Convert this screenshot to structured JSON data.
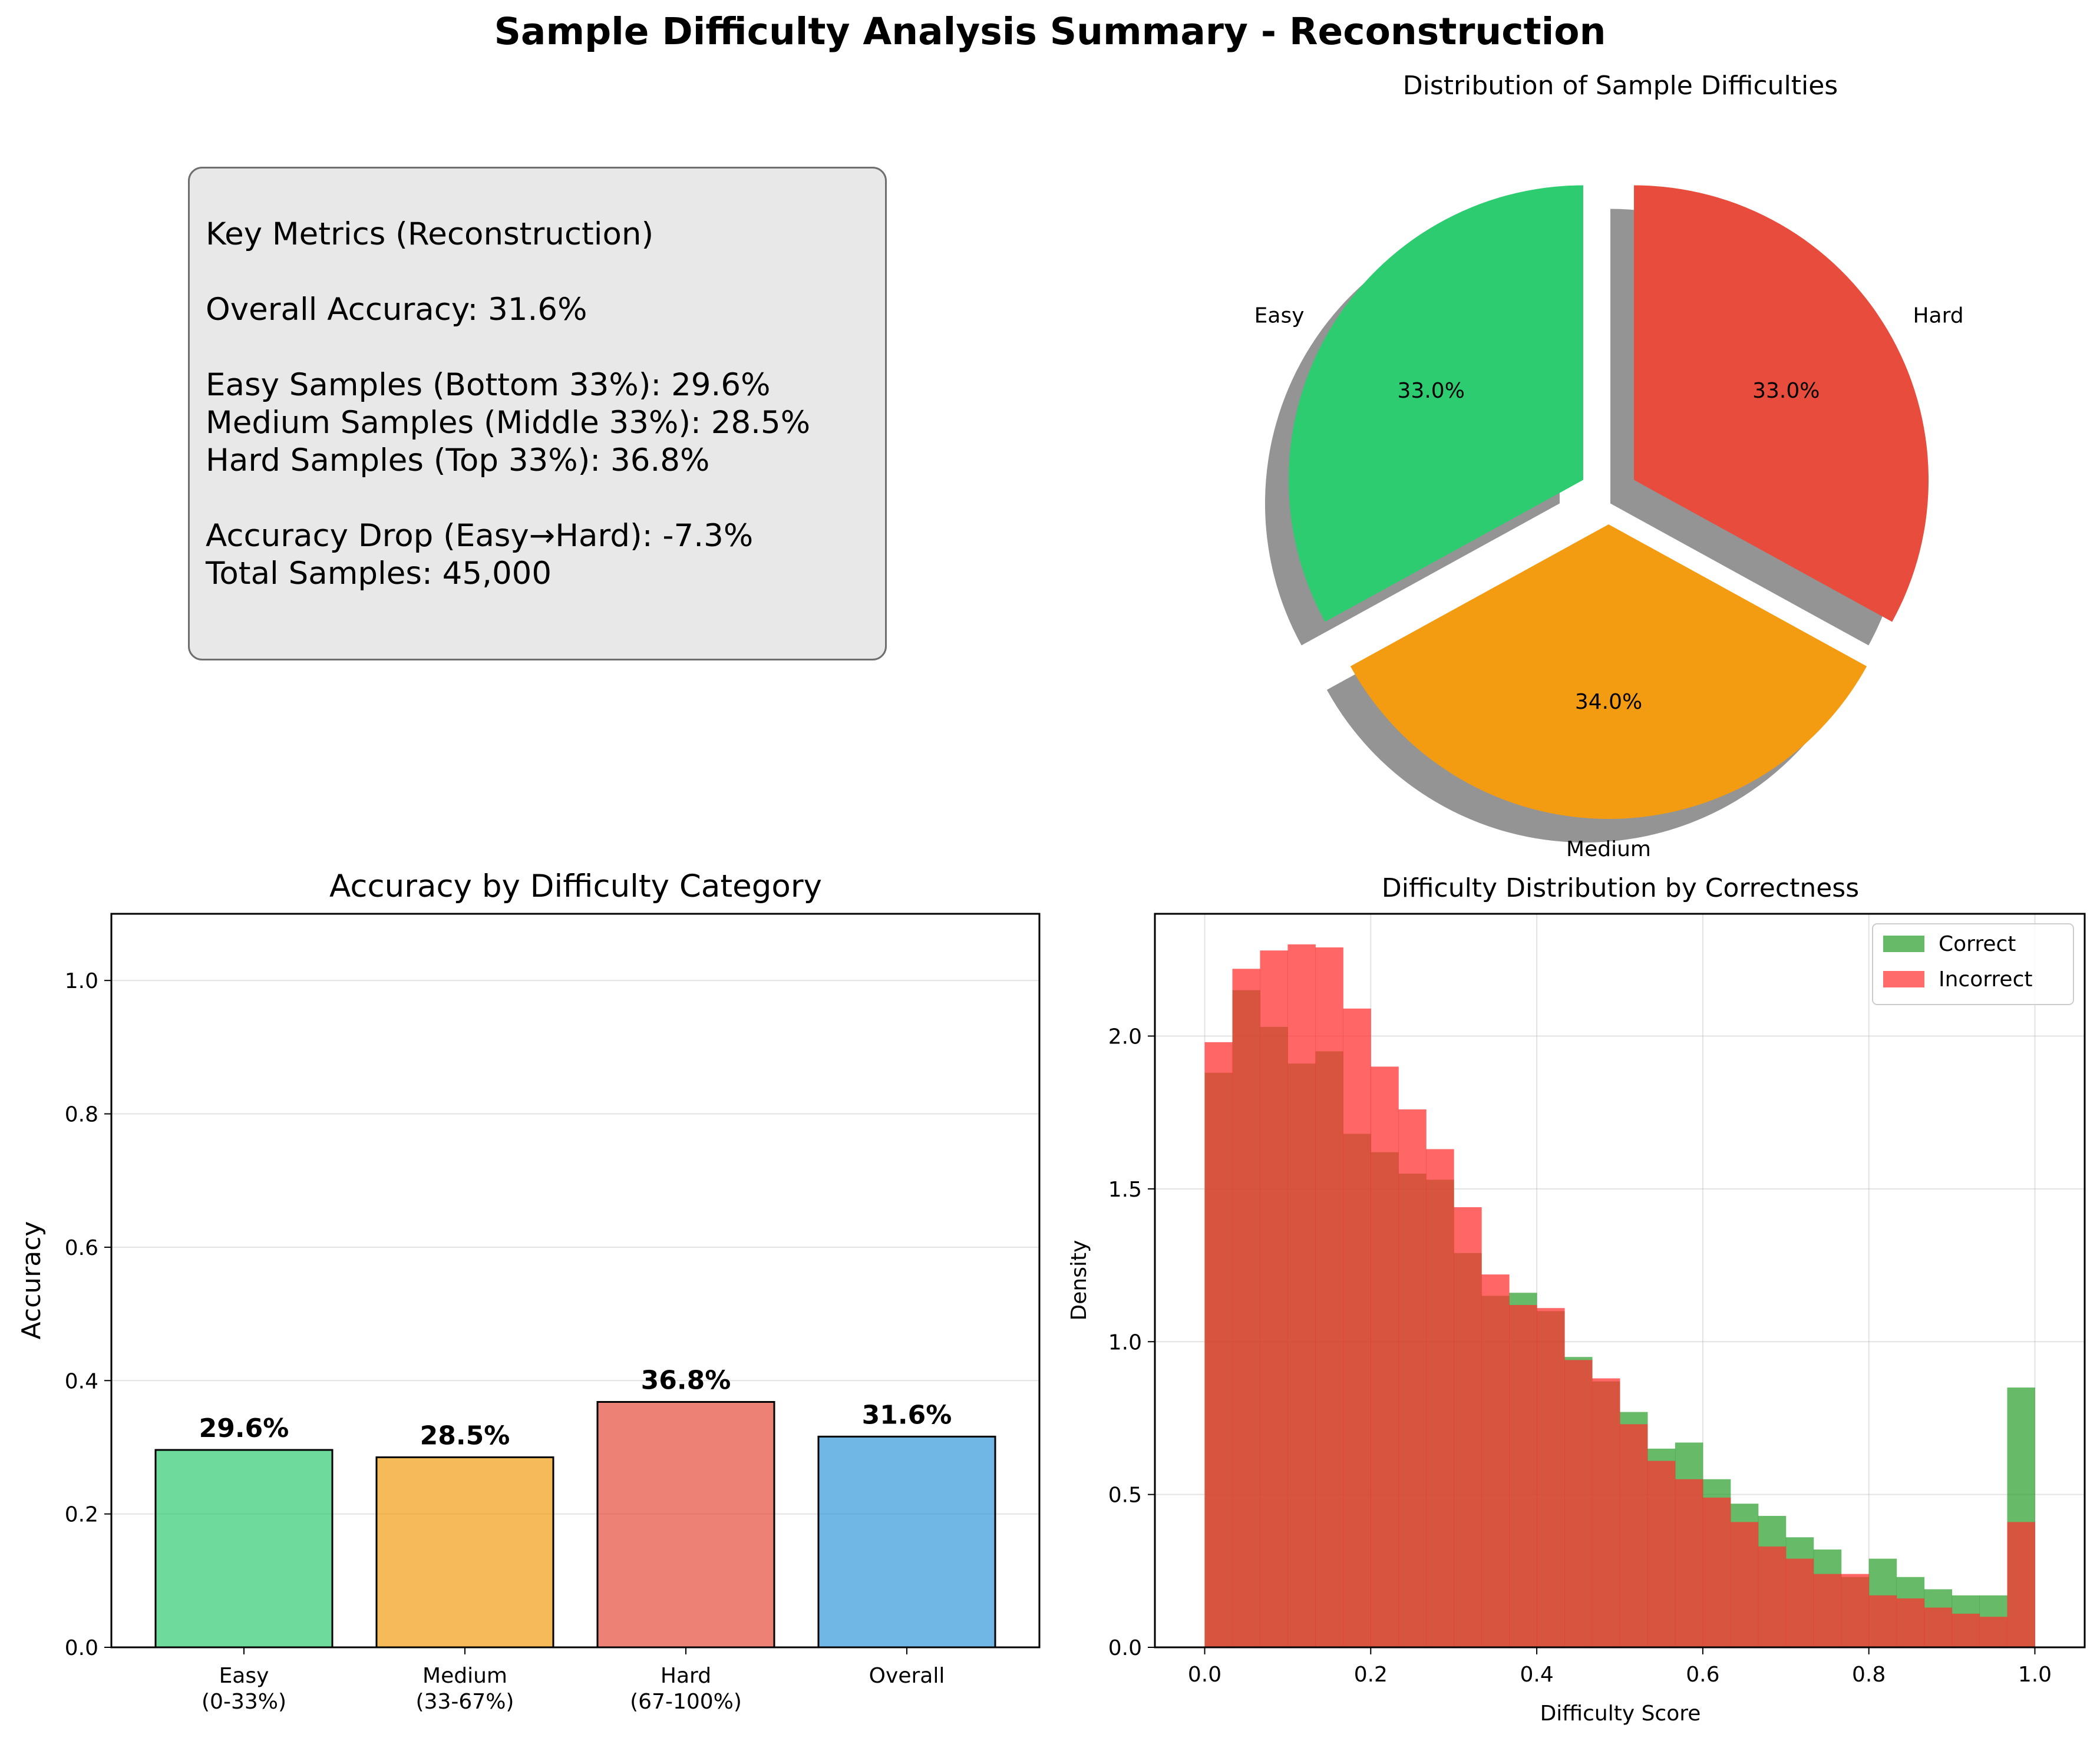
{
  "suptitle": "Sample Difficulty Analysis Summary - Reconstruction",
  "metrics": {
    "title": "Key Metrics (Reconstruction)",
    "overall": "Overall Accuracy: 31.6%",
    "easy": "Easy Samples (Bottom 33%): 29.6%",
    "medium": "Medium Samples (Middle 33%): 28.5%",
    "hard": "Hard Samples (Top 33%): 36.8%",
    "drop": "Accuracy Drop (Easy→Hard): -7.3%",
    "total": "Total Samples: 45,000"
  },
  "chart_data": [
    {
      "type": "pie",
      "title": "Distribution of Sample Difficulties",
      "labels": [
        "Easy",
        "Medium",
        "Hard"
      ],
      "values": [
        33.0,
        34.0,
        33.0
      ],
      "value_labels": [
        "33.0%",
        "34.0%",
        "33.0%"
      ],
      "colors": [
        "#2ecc71",
        "#f39c12",
        "#e74c3c"
      ],
      "exploded": true,
      "shadow": true
    },
    {
      "type": "bar",
      "title": "Accuracy by Difficulty Category",
      "categories": [
        [
          "Easy",
          "(0-33%)"
        ],
        [
          "Medium",
          "(33-67%)"
        ],
        [
          "Hard",
          "(67-100%)"
        ],
        [
          "Overall"
        ]
      ],
      "values": [
        0.296,
        0.285,
        0.368,
        0.316
      ],
      "value_labels": [
        "29.6%",
        "28.5%",
        "36.8%",
        "31.6%"
      ],
      "colors": [
        "#2ecc71",
        "#f39c12",
        "#e74c3c",
        "#3498db"
      ],
      "xlabel": "",
      "ylabel": "Accuracy",
      "ylim": [
        0,
        1.1
      ],
      "yticks": [
        "0.0",
        "0.2",
        "0.4",
        "0.6",
        "0.8",
        "1.0"
      ],
      "grid": "y"
    },
    {
      "type": "histogram",
      "title": "Difficulty Distribution by Correctness",
      "xlabel": "Difficulty Score",
      "ylabel": "Density",
      "xlim": [
        -0.06,
        1.06
      ],
      "ylim": [
        0,
        2.4
      ],
      "xticks": [
        "0.0",
        "0.2",
        "0.4",
        "0.6",
        "0.8",
        "1.0"
      ],
      "yticks": [
        "0.0",
        "0.5",
        "1.0",
        "1.5",
        "2.0"
      ],
      "bins": 30,
      "bin_range": [
        0,
        1
      ],
      "grid": true,
      "legend": "top-right",
      "series": [
        {
          "name": "Correct",
          "color": "#2ca02c",
          "values": [
            1.88,
            2.15,
            2.03,
            1.91,
            1.95,
            1.68,
            1.62,
            1.55,
            1.53,
            1.29,
            1.15,
            1.16,
            1.1,
            0.95,
            0.87,
            0.77,
            0.65,
            0.67,
            0.55,
            0.47,
            0.43,
            0.36,
            0.32,
            0.23,
            0.29,
            0.23,
            0.19,
            0.17,
            0.17,
            0.85
          ]
        },
        {
          "name": "Incorrect",
          "color": "#ff3030",
          "values": [
            1.98,
            2.22,
            2.28,
            2.3,
            2.29,
            2.09,
            1.9,
            1.76,
            1.63,
            1.44,
            1.22,
            1.12,
            1.11,
            0.94,
            0.88,
            0.73,
            0.61,
            0.55,
            0.49,
            0.41,
            0.33,
            0.29,
            0.24,
            0.24,
            0.17,
            0.16,
            0.13,
            0.11,
            0.1,
            0.41
          ]
        }
      ]
    }
  ]
}
